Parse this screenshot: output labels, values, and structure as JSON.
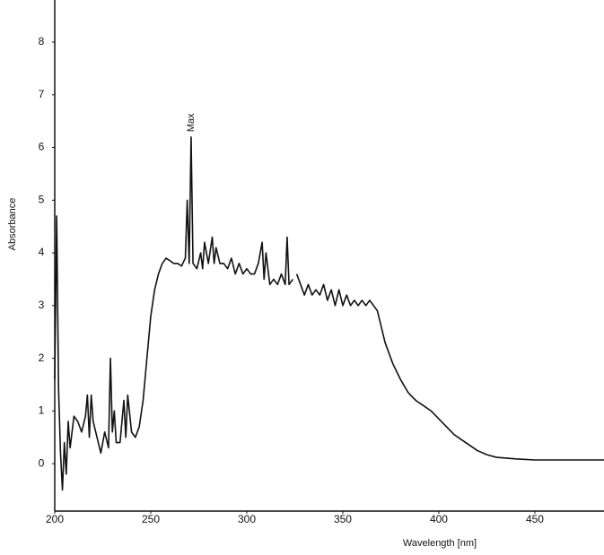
{
  "chart_data": {
    "type": "line",
    "xlabel": "Wavelength [nm]",
    "ylabel": "Absorbance",
    "annotation": "Max",
    "xlim": [
      200,
      486
    ],
    "ylim": [
      -0.9,
      8.8
    ],
    "xticks": [
      200,
      250,
      300,
      350,
      400,
      450
    ],
    "yticks": [
      0,
      1,
      2,
      3,
      4,
      5,
      6,
      7,
      8
    ],
    "grid": false,
    "x": [
      200,
      201,
      202,
      203,
      204,
      205,
      206,
      207,
      208,
      210,
      212,
      214,
      216,
      217,
      218,
      219,
      220,
      222,
      224,
      226,
      228,
      229,
      230,
      231,
      232,
      234,
      236,
      237,
      238,
      240,
      242,
      244,
      246,
      248,
      250,
      252,
      254,
      256,
      258,
      260,
      262,
      264,
      266,
      268,
      269,
      270,
      271,
      272,
      274,
      276,
      277,
      278,
      280,
      282,
      283,
      284,
      286,
      288,
      290,
      292,
      294,
      296,
      298,
      300,
      302,
      304,
      306,
      308,
      309,
      310,
      312,
      314,
      316,
      318,
      320,
      321,
      322,
      324,
      325,
      326,
      328,
      330,
      332,
      334,
      336,
      338,
      340,
      342,
      344,
      346,
      348,
      350,
      352,
      354,
      356,
      358,
      360,
      362,
      364,
      366,
      368,
      370,
      372,
      374,
      376,
      378,
      380,
      384,
      388,
      392,
      396,
      400,
      404,
      408,
      412,
      416,
      420,
      425,
      430,
      440,
      450,
      486
    ],
    "series": [
      {
        "name": "Absorbance",
        "color": "#111111",
        "values": [
          1.6,
          4.7,
          1.4,
          0.2,
          -0.5,
          0.4,
          -0.2,
          0.8,
          0.3,
          0.9,
          0.8,
          0.6,
          0.9,
          1.3,
          0.5,
          1.3,
          0.8,
          0.5,
          0.2,
          0.6,
          0.3,
          2.0,
          0.6,
          1.0,
          0.4,
          0.4,
          1.2,
          0.5,
          1.3,
          0.6,
          0.5,
          0.7,
          1.2,
          2.0,
          2.8,
          3.3,
          3.6,
          3.8,
          3.9,
          3.85,
          3.8,
          3.8,
          3.75,
          3.9,
          5.0,
          3.8,
          6.2,
          3.8,
          3.7,
          4.0,
          3.7,
          4.2,
          3.8,
          4.3,
          3.8,
          4.1,
          3.8,
          3.8,
          3.7,
          3.9,
          3.6,
          3.8,
          3.6,
          3.7,
          3.6,
          3.6,
          3.8,
          4.2,
          3.5,
          4.0,
          3.4,
          3.5,
          3.4,
          3.6,
          3.4,
          4.3,
          3.4,
          3.5,
          null,
          3.6,
          3.4,
          3.2,
          3.4,
          3.2,
          3.3,
          3.2,
          3.4,
          3.1,
          3.3,
          3.0,
          3.3,
          3.0,
          3.2,
          3.0,
          3.1,
          3.0,
          3.1,
          3.0,
          3.1,
          3.0,
          2.9,
          2.6,
          2.3,
          2.1,
          1.9,
          1.75,
          1.6,
          1.35,
          1.2,
          1.1,
          1.0,
          0.85,
          0.7,
          0.55,
          0.45,
          0.35,
          0.25,
          0.17,
          0.12,
          0.09,
          0.07,
          0.07
        ]
      }
    ]
  }
}
